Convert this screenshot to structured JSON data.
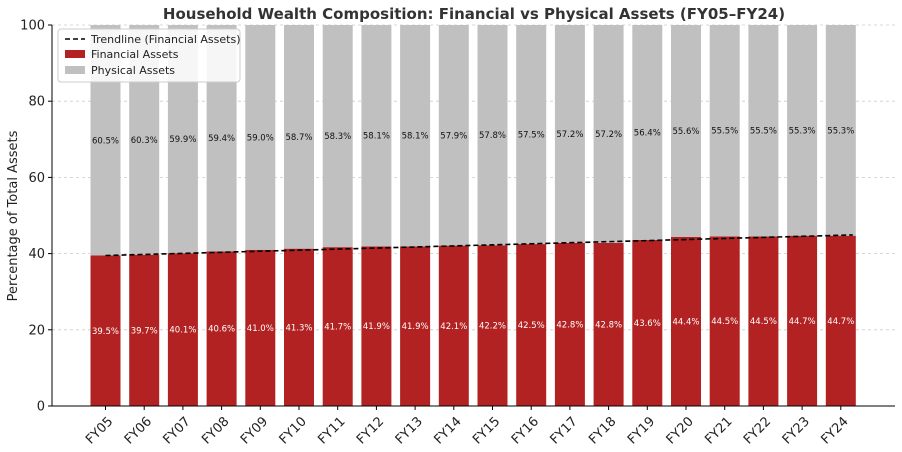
{
  "chart_data": {
    "type": "bar",
    "stacked": true,
    "title": "Household Wealth Composition: Financial vs Physical Assets (FY05–FY24)",
    "xlabel": "",
    "ylabel": "Percentage of Total Assets",
    "ylim": [
      0,
      100
    ],
    "yticks": [
      0,
      20,
      40,
      60,
      80,
      100
    ],
    "grid": true,
    "legend_position": "top-left",
    "categories": [
      "FY05",
      "FY06",
      "FY07",
      "FY08",
      "FY09",
      "FY10",
      "FY11",
      "FY12",
      "FY13",
      "FY14",
      "FY15",
      "FY16",
      "FY17",
      "FY18",
      "FY19",
      "FY20",
      "FY21",
      "FY22",
      "FY23",
      "FY24"
    ],
    "series": [
      {
        "name": "Financial Assets",
        "color": "#b22222",
        "values": [
          39.5,
          39.7,
          40.1,
          40.6,
          41.0,
          41.3,
          41.7,
          41.9,
          41.9,
          42.1,
          42.2,
          42.5,
          42.8,
          42.8,
          43.6,
          44.4,
          44.5,
          44.5,
          44.7,
          44.7
        ],
        "labels": [
          "39.5%",
          "39.7%",
          "40.1%",
          "40.6%",
          "41.0%",
          "41.3%",
          "41.7%",
          "41.9%",
          "41.9%",
          "42.1%",
          "42.2%",
          "42.5%",
          "42.8%",
          "42.8%",
          "43.6%",
          "44.4%",
          "44.5%",
          "44.5%",
          "44.7%",
          "44.7%"
        ]
      },
      {
        "name": "Physical Assets",
        "color": "#c0c0c0",
        "values": [
          60.5,
          60.3,
          59.9,
          59.4,
          59.0,
          58.7,
          58.3,
          58.1,
          58.1,
          57.9,
          57.8,
          57.5,
          57.2,
          57.2,
          56.4,
          55.6,
          55.5,
          55.5,
          55.3,
          55.3
        ],
        "labels": [
          "60.5%",
          "60.3%",
          "59.9%",
          "59.4%",
          "59.0%",
          "58.7%",
          "58.3%",
          "58.1%",
          "58.1%",
          "57.9%",
          "57.8%",
          "57.5%",
          "57.2%",
          "57.2%",
          "56.4%",
          "55.6%",
          "55.5%",
          "55.5%",
          "55.3%",
          "55.3%"
        ]
      }
    ],
    "trendline": {
      "name": "Trendline (Financial Assets)",
      "color": "#000000",
      "style": "dashed",
      "start": 39.5,
      "end": 44.9
    }
  }
}
